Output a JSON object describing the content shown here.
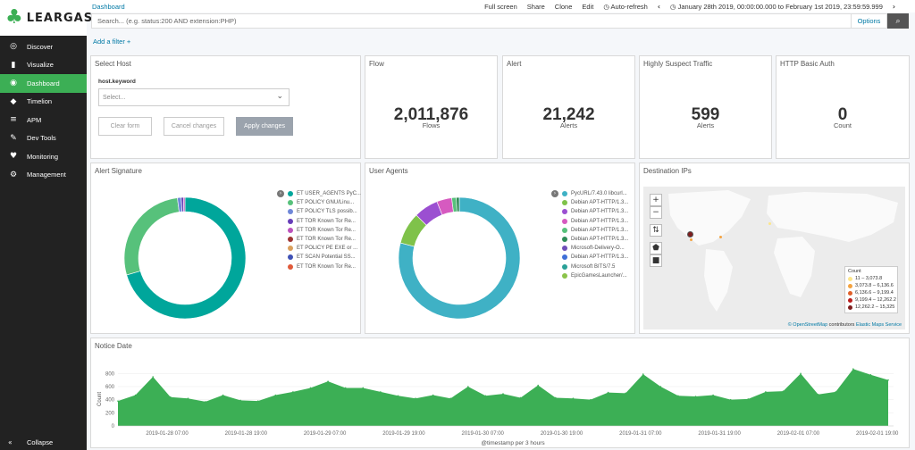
{
  "app": {
    "brand": "LEARGAS"
  },
  "sidebar": {
    "items": [
      {
        "label": "Discover",
        "icon": "compass-icon",
        "glyph": "◎"
      },
      {
        "label": "Visualize",
        "icon": "bar-chart-icon",
        "glyph": "▮"
      },
      {
        "label": "Dashboard",
        "icon": "dashboard-icon",
        "glyph": "◉",
        "active": true
      },
      {
        "label": "Timelion",
        "icon": "shield-icon",
        "glyph": "◆"
      },
      {
        "label": "APM",
        "icon": "list-icon",
        "glyph": "≡"
      },
      {
        "label": "Dev Tools",
        "icon": "wrench-icon",
        "glyph": "✎"
      },
      {
        "label": "Monitoring",
        "icon": "heartbeat-icon",
        "glyph": "♥"
      },
      {
        "label": "Management",
        "icon": "gear-icon",
        "glyph": "⚙"
      }
    ],
    "collapse_label": "Collapse"
  },
  "topbar": {
    "breadcrumb": "Dashboard",
    "actions": [
      "Full screen",
      "Share",
      "Clone",
      "Edit"
    ],
    "auto_refresh": "Auto-refresh",
    "time_range": "January 28th 2019, 00:00:00.000 to February 1st 2019, 23:59:59.999"
  },
  "search": {
    "placeholder": "Search... (e.g. status:200 AND extension:PHP)",
    "options_label": "Options"
  },
  "filters": {
    "add_label": "Add a filter +"
  },
  "select_host": {
    "title": "Select Host",
    "field_label": "host.keyword",
    "placeholder": "Select...",
    "clear_label": "Clear form",
    "cancel_label": "Cancel changes",
    "apply_label": "Apply changes"
  },
  "metrics": [
    {
      "title": "Flow",
      "value": "2,011,876",
      "label": "Flows"
    },
    {
      "title": "Alert",
      "value": "21,242",
      "label": "Alerts"
    },
    {
      "title": "Highly Suspect Traffic",
      "value": "599",
      "label": "Alerts"
    },
    {
      "title": "HTTP Basic Auth",
      "value": "0",
      "label": "Count"
    }
  ],
  "alert_signature": {
    "title": "Alert Signature",
    "legend": [
      {
        "label": "ET USER_AGENTS PyC...",
        "color": "#00a69b"
      },
      {
        "label": "ET POLICY GNU/Linu...",
        "color": "#57c17b"
      },
      {
        "label": "ET POLICY TLS possib...",
        "color": "#6f87d8"
      },
      {
        "label": "ET TOR Known Tor Re...",
        "color": "#663db8"
      },
      {
        "label": "ET TOR Known Tor Re...",
        "color": "#bc52bc"
      },
      {
        "label": "ET TOR Known Tor Re...",
        "color": "#9e3533"
      },
      {
        "label": "ET POLICY PE EXE or ...",
        "color": "#daa05d"
      },
      {
        "label": "ET SCAN Potential SS...",
        "color": "#3f51b5"
      },
      {
        "label": "ET TOR Known Tor Re...",
        "color": "#e05a3a"
      }
    ],
    "slices": [
      {
        "value": 70.5,
        "color": "#00a69b"
      },
      {
        "value": 27.5,
        "color": "#57c17b"
      },
      {
        "value": 1.0,
        "color": "#6f87d8"
      },
      {
        "value": 0.6,
        "color": "#663db8"
      },
      {
        "value": 0.4,
        "color": "#bc52bc"
      }
    ]
  },
  "user_agents": {
    "title": "User Agents",
    "legend": [
      {
        "label": "PycURL/7.43.0 libcurl...",
        "color": "#3fb1c5"
      },
      {
        "label": "Debian APT-HTTP/1.3...",
        "color": "#7fc24a"
      },
      {
        "label": "Debian APT-HTTP/1.3...",
        "color": "#9b4fd1"
      },
      {
        "label": "Debian APT-HTTP/1.3...",
        "color": "#d65ac0"
      },
      {
        "label": "Debian APT-HTTP/1.3...",
        "color": "#57c17b"
      },
      {
        "label": "Debian APT-HTTP/1.3...",
        "color": "#2e8b57"
      },
      {
        "label": "Microsoft-Delivery-O...",
        "color": "#6f4fb8"
      },
      {
        "label": "Debian APT-HTTP/1.3...",
        "color": "#3f6fd8"
      },
      {
        "label": "Microsoft BITS/7.5",
        "color": "#2aa198"
      },
      {
        "label": "EpicGamesLauncher/...",
        "color": "#8bc34a"
      }
    ],
    "slices": [
      {
        "value": 79,
        "color": "#3fb1c5"
      },
      {
        "value": 8.5,
        "color": "#7fc24a"
      },
      {
        "value": 6.5,
        "color": "#9b4fd1"
      },
      {
        "value": 4,
        "color": "#d65ac0"
      },
      {
        "value": 1.2,
        "color": "#57c17b"
      },
      {
        "value": 0.8,
        "color": "#2e8b57"
      }
    ]
  },
  "destination_ips": {
    "title": "Destination IPs",
    "zoom_in": "+",
    "zoom_out": "−",
    "legend_title": "Count",
    "legend": [
      {
        "label": "11 – 3,073.8",
        "color": "#fde68a"
      },
      {
        "label": "3,073.8 – 6,136.6",
        "color": "#f4a340"
      },
      {
        "label": "6,136.6 – 9,199.4",
        "color": "#e0602a"
      },
      {
        "label": "9,199.4 – 12,262.2",
        "color": "#b91c1c"
      },
      {
        "label": "12,262.2 – 15,325",
        "color": "#7f1d1d"
      }
    ],
    "attribution_a": "© OpenStreetMap",
    "attribution_b": "contributors",
    "attribution_c": "Elastic Maps Service"
  },
  "notice_date": {
    "title": "Notice Date",
    "xlabel": "@timestamp per 3 hours",
    "ylabel": "Count"
  },
  "chart_data": {
    "type": "area",
    "title": "Notice Date",
    "xlabel": "@timestamp per 3 hours",
    "ylabel": "Count",
    "ylim": [
      0,
      900
    ],
    "yticks": [
      0,
      200,
      400,
      600,
      800
    ],
    "xtick_labels": [
      "2019-01-28 07:00",
      "2019-01-28 19:00",
      "2019-01-29 07:00",
      "2019-01-29 19:00",
      "2019-01-30 07:00",
      "2019-01-30 19:00",
      "2019-01-31 07:00",
      "2019-01-31 19:00",
      "2019-02-01 07:00",
      "2019-02-01 19:00"
    ],
    "color": "#3caf55",
    "values": [
      380,
      470,
      750,
      440,
      420,
      370,
      470,
      390,
      380,
      470,
      520,
      580,
      680,
      580,
      580,
      520,
      460,
      420,
      470,
      420,
      600,
      460,
      490,
      430,
      620,
      430,
      420,
      400,
      510,
      500,
      790,
      600,
      460,
      450,
      470,
      400,
      410,
      520,
      530,
      800,
      480,
      520,
      870,
      780,
      700
    ]
  }
}
